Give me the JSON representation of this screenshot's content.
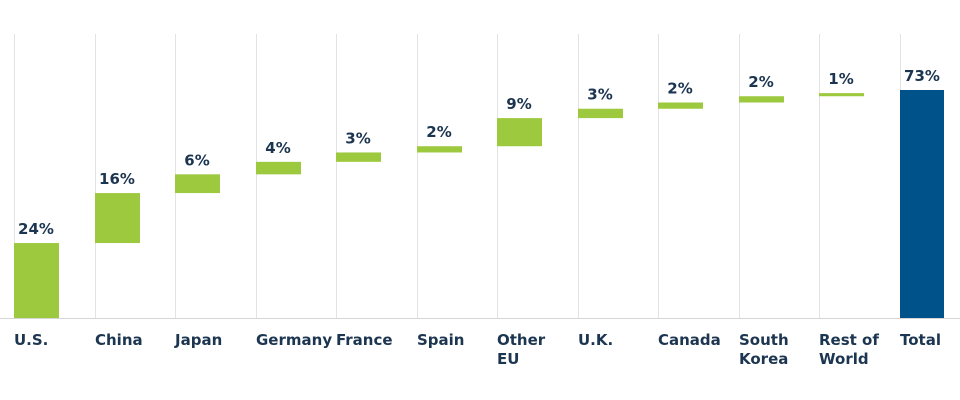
{
  "chart_data": {
    "type": "bar",
    "subtype": "waterfall",
    "categories": [
      [
        "U.S."
      ],
      [
        "China"
      ],
      [
        "Japan"
      ],
      [
        "Germany"
      ],
      [
        "France"
      ],
      [
        "Spain"
      ],
      [
        "Other",
        "EU"
      ],
      [
        "U.K."
      ],
      [
        "Canada"
      ],
      [
        "South",
        "Korea"
      ],
      [
        "Rest of",
        "World"
      ],
      [
        "Total"
      ]
    ],
    "values": [
      24,
      16,
      6,
      4,
      3,
      2,
      9,
      3,
      2,
      2,
      1,
      73
    ],
    "value_labels": [
      "24%",
      "16%",
      "6%",
      "4%",
      "3%",
      "2%",
      "9%",
      "3%",
      "2%",
      "2%",
      "1%",
      "73%"
    ],
    "total_index": 11,
    "ylim": [
      0,
      82
    ],
    "grid": "vertical",
    "colors": {
      "increment": "#9dc93f",
      "total": "#00528a",
      "text": "#1c3550",
      "grid": "#e3e3e3"
    }
  }
}
